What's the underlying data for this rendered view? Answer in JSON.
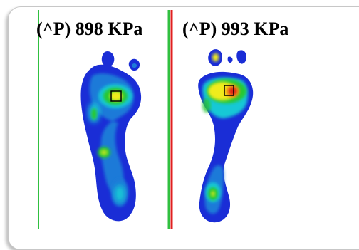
{
  "plots": [
    {
      "label": "(^P) 898 KPa"
    },
    {
      "label": "(^P) 993 KPa"
    }
  ],
  "colors": {
    "blue": "#1a2dd6",
    "mid_blue": "#1e7ad8",
    "cyan": "#14c8d6",
    "green": "#28c832",
    "yellow": "#f0ec1e",
    "orange": "#f5a014",
    "red": "#dc2814",
    "left_divider": "#30c040",
    "right_divider_red": "#e02020"
  }
}
